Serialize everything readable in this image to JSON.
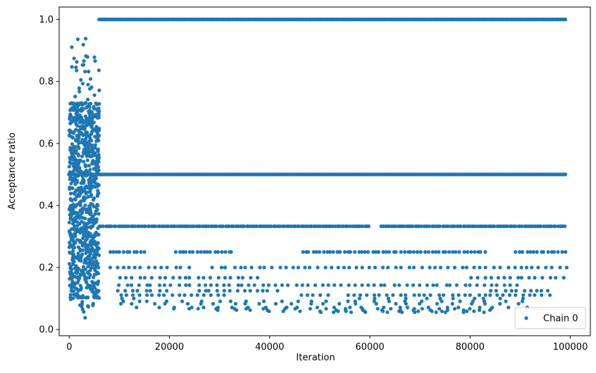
{
  "chart_data": {
    "type": "scatter",
    "xlabel": "Iteration",
    "ylabel": "Acceptance ratio",
    "xlim": [
      -2000,
      104000
    ],
    "ylim": [
      -0.02,
      1.04
    ],
    "xticks": [
      0,
      20000,
      40000,
      60000,
      80000,
      100000
    ],
    "xtick_labels": [
      "0",
      "20000",
      "40000",
      "60000",
      "80000",
      "100000"
    ],
    "yticks": [
      0.0,
      0.2,
      0.4,
      0.6,
      0.8,
      1.0
    ],
    "ytick_labels": [
      "0.0",
      "0.2",
      "0.4",
      "0.6",
      "0.8",
      "1.0"
    ],
    "grid": false,
    "legend_position": "bottom-right",
    "series": [
      {
        "name": "Chain 0",
        "color": "#1f77b4",
        "marker": "circle",
        "warmup_phase": {
          "x_range": [
            0,
            6000
          ],
          "y_range": [
            0.03,
            0.95
          ],
          "dense_y_band": [
            0.1,
            0.73
          ]
        },
        "discrete_levels": [
          {
            "y": 1.0,
            "x_range": [
              6000,
              99000
            ],
            "density": "continuous"
          },
          {
            "y": 0.5,
            "x_range": [
              0,
              99000
            ],
            "density": "continuous"
          },
          {
            "y": 0.333,
            "x_range": [
              6000,
              99000
            ],
            "density": "frequent"
          },
          {
            "y": 0.25,
            "x_range": [
              8000,
              99000
            ],
            "density": "moderate"
          },
          {
            "y": 0.2,
            "x_range": [
              8000,
              99000
            ],
            "density": "sparse"
          },
          {
            "y": 0.167,
            "x_range": [
              10000,
              99000
            ],
            "density": "sparse"
          },
          {
            "y": 0.143,
            "x_range": [
              10000,
              97000
            ],
            "density": "sparse"
          },
          {
            "y": 0.125,
            "x_range": [
              10000,
              97000
            ],
            "density": "sparse"
          },
          {
            "y": 0.111,
            "x_range": [
              10000,
              97000
            ],
            "density": "sparse"
          },
          {
            "y": 0.1,
            "x_range": [
              10000,
              92000
            ],
            "density": "rare"
          },
          {
            "y": 0.091,
            "x_range": [
              10000,
              92000
            ],
            "density": "rare"
          },
          {
            "y": 0.083,
            "x_range": [
              10000,
              92000
            ],
            "density": "rare"
          },
          {
            "y": 0.077,
            "x_range": [
              14000,
              92000
            ],
            "density": "rare"
          },
          {
            "y": 0.071,
            "x_range": [
              14000,
              92000
            ],
            "density": "rare"
          },
          {
            "y": 0.067,
            "x_range": [
              20000,
              90000
            ],
            "density": "rare"
          },
          {
            "y": 0.0625,
            "x_range": [
              30000,
              85000
            ],
            "density": "rare"
          },
          {
            "y": 0.0588,
            "x_range": [
              40000,
              82000
            ],
            "density": "rare"
          },
          {
            "y": 0.0556,
            "x_range": [
              50000,
              82000
            ],
            "density": "rare"
          }
        ]
      }
    ]
  }
}
